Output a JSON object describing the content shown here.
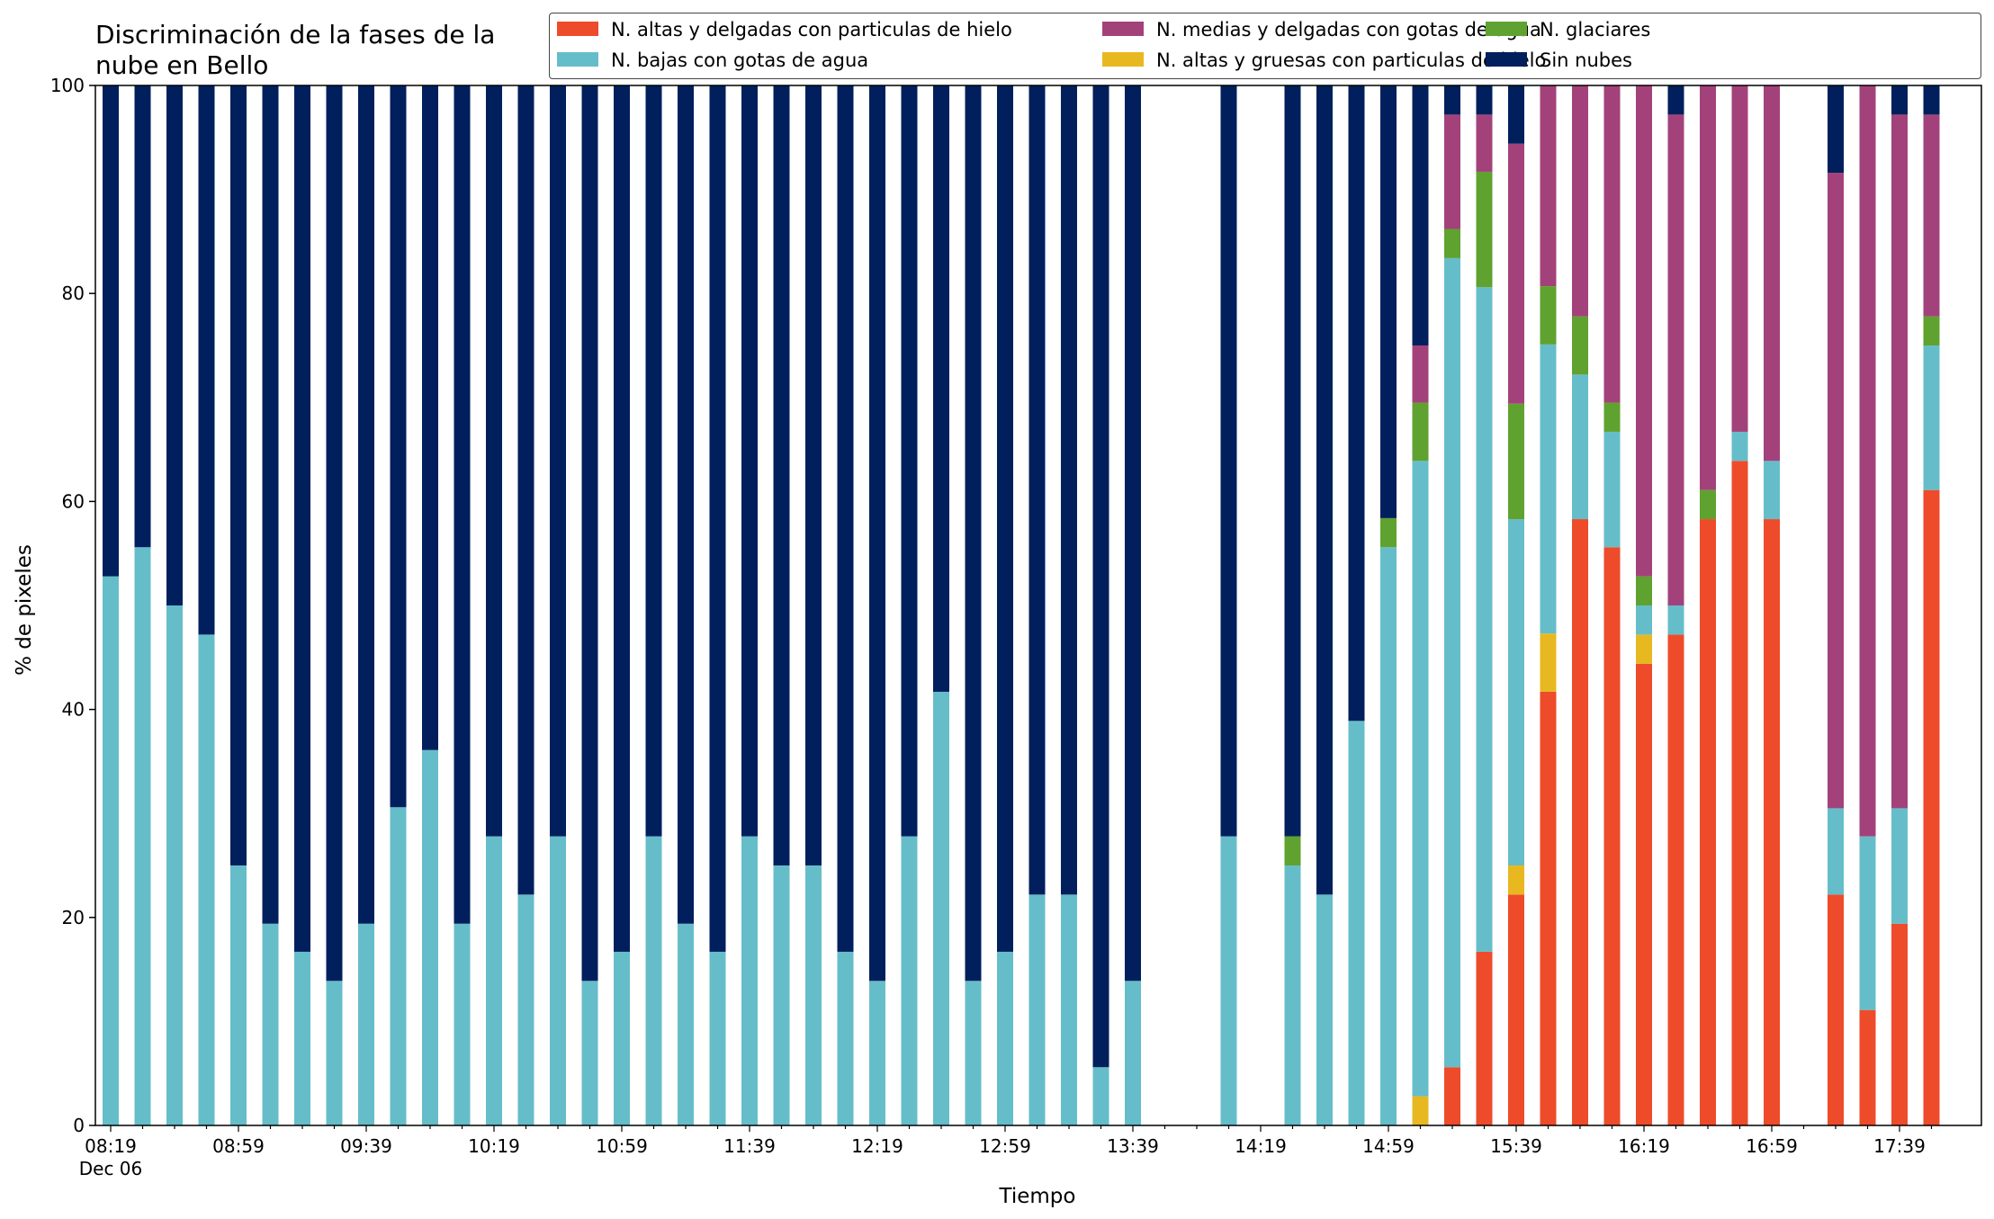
{
  "chart_data": {
    "type": "bar",
    "stacked": true,
    "title": "Discriminación de la fases de la\nnube en Bello",
    "xlabel": "Tiempo",
    "ylabel": "% de pixeles",
    "ylim": [
      0,
      100
    ],
    "yticks": [
      "0",
      "20",
      "40",
      "60",
      "80",
      "100"
    ],
    "grid": false,
    "legend_position": "top-right",
    "x_tick_labels": [
      {
        "slot": 0,
        "text": "08:19",
        "sub": "Dec 06"
      },
      {
        "slot": 4,
        "text": "08:59"
      },
      {
        "slot": 8,
        "text": "09:39"
      },
      {
        "slot": 12,
        "text": "10:19"
      },
      {
        "slot": 16,
        "text": "10:59"
      },
      {
        "slot": 20,
        "text": "11:39"
      },
      {
        "slot": 24,
        "text": "12:19"
      },
      {
        "slot": 28,
        "text": "12:59"
      },
      {
        "slot": 32,
        "text": "13:39"
      },
      {
        "slot": 36,
        "text": "14:19"
      },
      {
        "slot": 40,
        "text": "14:59"
      },
      {
        "slot": 44,
        "text": "15:39"
      },
      {
        "slot": 48,
        "text": "16:19"
      },
      {
        "slot": 52,
        "text": "16:59"
      },
      {
        "slot": 56,
        "text": "17:39"
      }
    ],
    "slots_total": 58,
    "series": [
      {
        "name": "N. altas y delgadas con particulas de hielo",
        "color": "#ee4b2b"
      },
      {
        "name": "N. altas y gruesas con particulas de hielo",
        "color": "#e8b820"
      },
      {
        "name": "N. bajas con gotas de agua",
        "color": "#66bdca"
      },
      {
        "name": "N. glaciares",
        "color": "#5fa22f"
      },
      {
        "name": "N. medias y delgadas con gotas de agua",
        "color": "#a3427a"
      },
      {
        "name": "Sin nubes",
        "color": "#001f5c"
      }
    ],
    "bars": [
      {
        "slot": 0,
        "values": [
          0,
          0,
          52.8,
          0,
          0,
          47.2
        ]
      },
      {
        "slot": 1,
        "values": [
          0,
          0,
          55.6,
          0,
          0,
          44.4
        ]
      },
      {
        "slot": 2,
        "values": [
          0,
          0,
          50.0,
          0,
          0,
          50.0
        ]
      },
      {
        "slot": 3,
        "values": [
          0,
          0,
          47.2,
          0,
          0,
          52.8
        ]
      },
      {
        "slot": 4,
        "values": [
          0,
          0,
          25.0,
          0,
          0,
          75.0
        ]
      },
      {
        "slot": 5,
        "values": [
          0,
          0,
          19.4,
          0,
          0,
          80.6
        ]
      },
      {
        "slot": 6,
        "values": [
          0,
          0,
          16.7,
          0,
          0,
          83.3
        ]
      },
      {
        "slot": 7,
        "values": [
          0,
          0,
          13.9,
          0,
          0,
          86.1
        ]
      },
      {
        "slot": 8,
        "values": [
          0,
          0,
          19.4,
          0,
          0,
          80.6
        ]
      },
      {
        "slot": 9,
        "values": [
          0,
          0,
          30.6,
          0,
          0,
          69.4
        ]
      },
      {
        "slot": 10,
        "values": [
          0,
          0,
          36.1,
          0,
          0,
          63.9
        ]
      },
      {
        "slot": 11,
        "values": [
          0,
          0,
          19.4,
          0,
          0,
          80.6
        ]
      },
      {
        "slot": 12,
        "values": [
          0,
          0,
          27.8,
          0,
          0,
          72.2
        ]
      },
      {
        "slot": 13,
        "values": [
          0,
          0,
          22.2,
          0,
          0,
          77.8
        ]
      },
      {
        "slot": 14,
        "values": [
          0,
          0,
          27.8,
          0,
          0,
          72.2
        ]
      },
      {
        "slot": 15,
        "values": [
          0,
          0,
          13.9,
          0,
          0,
          86.1
        ]
      },
      {
        "slot": 16,
        "values": [
          0,
          0,
          16.7,
          0,
          0,
          83.3
        ]
      },
      {
        "slot": 17,
        "values": [
          0,
          0,
          27.8,
          0,
          0,
          72.2
        ]
      },
      {
        "slot": 18,
        "values": [
          0,
          0,
          19.4,
          0,
          0,
          80.6
        ]
      },
      {
        "slot": 19,
        "values": [
          0,
          0,
          16.7,
          0,
          0,
          83.3
        ]
      },
      {
        "slot": 20,
        "values": [
          0,
          0,
          27.8,
          0,
          0,
          72.2
        ]
      },
      {
        "slot": 21,
        "values": [
          0,
          0,
          25.0,
          0,
          0,
          75.0
        ]
      },
      {
        "slot": 22,
        "values": [
          0,
          0,
          25.0,
          0,
          0,
          75.0
        ]
      },
      {
        "slot": 23,
        "values": [
          0,
          0,
          16.7,
          0,
          0,
          83.3
        ]
      },
      {
        "slot": 24,
        "values": [
          0,
          0,
          13.9,
          0,
          0,
          86.1
        ]
      },
      {
        "slot": 25,
        "values": [
          0,
          0,
          27.8,
          0,
          0,
          72.2
        ]
      },
      {
        "slot": 26,
        "values": [
          0,
          0,
          41.7,
          0,
          0,
          58.3
        ]
      },
      {
        "slot": 27,
        "values": [
          0,
          0,
          13.9,
          0,
          0,
          86.1
        ]
      },
      {
        "slot": 28,
        "values": [
          0,
          0,
          16.7,
          0,
          0,
          83.3
        ]
      },
      {
        "slot": 29,
        "values": [
          0,
          0,
          22.2,
          0,
          0,
          77.8
        ]
      },
      {
        "slot": 30,
        "values": [
          0,
          0,
          22.2,
          0,
          0,
          77.8
        ]
      },
      {
        "slot": 31,
        "values": [
          0,
          0,
          5.6,
          0,
          0,
          94.4
        ]
      },
      {
        "slot": 32,
        "values": [
          0,
          0,
          13.9,
          0,
          0,
          86.1
        ]
      },
      {
        "slot": 35,
        "values": [
          0,
          0,
          27.8,
          0,
          0,
          72.2
        ]
      },
      {
        "slot": 37,
        "values": [
          0,
          0,
          25.0,
          2.8,
          0,
          72.2
        ]
      },
      {
        "slot": 38,
        "values": [
          0,
          0,
          22.2,
          0,
          0,
          77.8
        ]
      },
      {
        "slot": 39,
        "values": [
          0,
          0,
          38.9,
          0,
          0,
          61.1
        ]
      },
      {
        "slot": 40,
        "values": [
          0,
          0,
          55.6,
          2.8,
          0,
          41.6
        ]
      },
      {
        "slot": 41,
        "values": [
          0,
          2.8,
          61.1,
          5.6,
          5.5,
          25.0
        ]
      },
      {
        "slot": 42,
        "values": [
          5.6,
          0,
          77.8,
          2.8,
          11.0,
          2.8
        ]
      },
      {
        "slot": 43,
        "values": [
          16.7,
          0,
          63.9,
          11.1,
          5.5,
          2.8
        ]
      },
      {
        "slot": 44,
        "values": [
          22.2,
          2.8,
          33.3,
          11.1,
          25.0,
          5.6
        ]
      },
      {
        "slot": 45,
        "values": [
          41.7,
          5.6,
          27.8,
          5.6,
          19.3,
          0
        ]
      },
      {
        "slot": 46,
        "values": [
          58.3,
          0,
          13.9,
          5.6,
          22.2,
          0
        ]
      },
      {
        "slot": 47,
        "values": [
          55.6,
          0,
          11.1,
          2.8,
          30.5,
          0
        ]
      },
      {
        "slot": 48,
        "values": [
          44.4,
          2.8,
          2.8,
          2.8,
          47.2,
          0
        ]
      },
      {
        "slot": 49,
        "values": [
          47.2,
          0,
          2.8,
          0,
          47.2,
          2.8
        ]
      },
      {
        "slot": 50,
        "values": [
          58.3,
          0,
          0,
          2.8,
          38.9,
          0
        ]
      },
      {
        "slot": 51,
        "values": [
          63.9,
          0,
          2.8,
          0,
          33.3,
          0
        ]
      },
      {
        "slot": 52,
        "values": [
          58.3,
          0,
          5.6,
          0,
          36.1,
          0
        ]
      },
      {
        "slot": 54,
        "values": [
          22.2,
          0,
          8.3,
          0,
          61.1,
          8.4
        ]
      },
      {
        "slot": 55,
        "values": [
          11.1,
          0,
          16.7,
          0,
          72.2,
          0
        ]
      },
      {
        "slot": 56,
        "values": [
          19.4,
          0,
          11.1,
          0,
          66.7,
          2.8
        ]
      },
      {
        "slot": 57,
        "values": [
          61.1,
          0,
          13.9,
          2.8,
          19.4,
          2.8
        ]
      }
    ]
  }
}
